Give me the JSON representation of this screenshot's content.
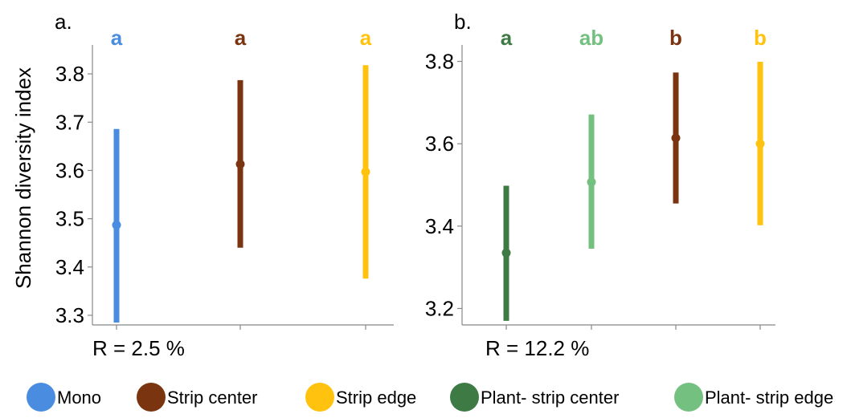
{
  "ylabel": "Shannon diversity index",
  "chart_data": [
    {
      "type": "scatter",
      "panel_label": "a.",
      "ylim": [
        3.28,
        3.86
      ],
      "yticks": [
        "3.3",
        "3.4",
        "3.5",
        "3.6",
        "3.7",
        "3.8"
      ],
      "annotation": "R = 2.5 %",
      "groups": [
        {
          "name": "Mono",
          "mean": 3.487,
          "lower": 3.285,
          "upper": 3.686,
          "letter": "a",
          "color": "#4a8de0"
        },
        {
          "name": "Strip center",
          "mean": 3.613,
          "lower": 3.44,
          "upper": 3.787,
          "letter": "a",
          "color": "#7b3410"
        },
        {
          "name": "Strip edge",
          "mean": 3.597,
          "lower": 3.376,
          "upper": 3.818,
          "letter": "a",
          "color": "#ffc20e"
        }
      ]
    },
    {
      "type": "scatter",
      "panel_label": "b.",
      "ylim": [
        3.16,
        3.84
      ],
      "yticks": [
        "3.2",
        "3.4",
        "3.6",
        "3.8"
      ],
      "annotation": "R = 12.2 %",
      "groups": [
        {
          "name": "Plant- strip center",
          "mean": 3.335,
          "lower": 3.17,
          "upper": 3.498,
          "letter": "a",
          "color": "#3e7a44"
        },
        {
          "name": "Plant- strip edge",
          "mean": 3.507,
          "lower": 3.345,
          "upper": 3.671,
          "letter": "ab",
          "color": "#74c080"
        },
        {
          "name": "Strip center",
          "mean": 3.614,
          "lower": 3.455,
          "upper": 3.773,
          "letter": "b",
          "color": "#7b3410"
        },
        {
          "name": "Strip edge",
          "mean": 3.6,
          "lower": 3.402,
          "upper": 3.799,
          "letter": "b",
          "color": "#ffc20e"
        }
      ]
    }
  ],
  "legend": [
    {
      "label": "Mono",
      "color": "#4a8de0"
    },
    {
      "label": "Strip center",
      "color": "#7b3410"
    },
    {
      "label": "Strip edge",
      "color": "#ffc20e"
    },
    {
      "label": "Plant- strip center",
      "color": "#3e7a44"
    },
    {
      "label": "Plant- strip edge",
      "color": "#74c080"
    }
  ]
}
